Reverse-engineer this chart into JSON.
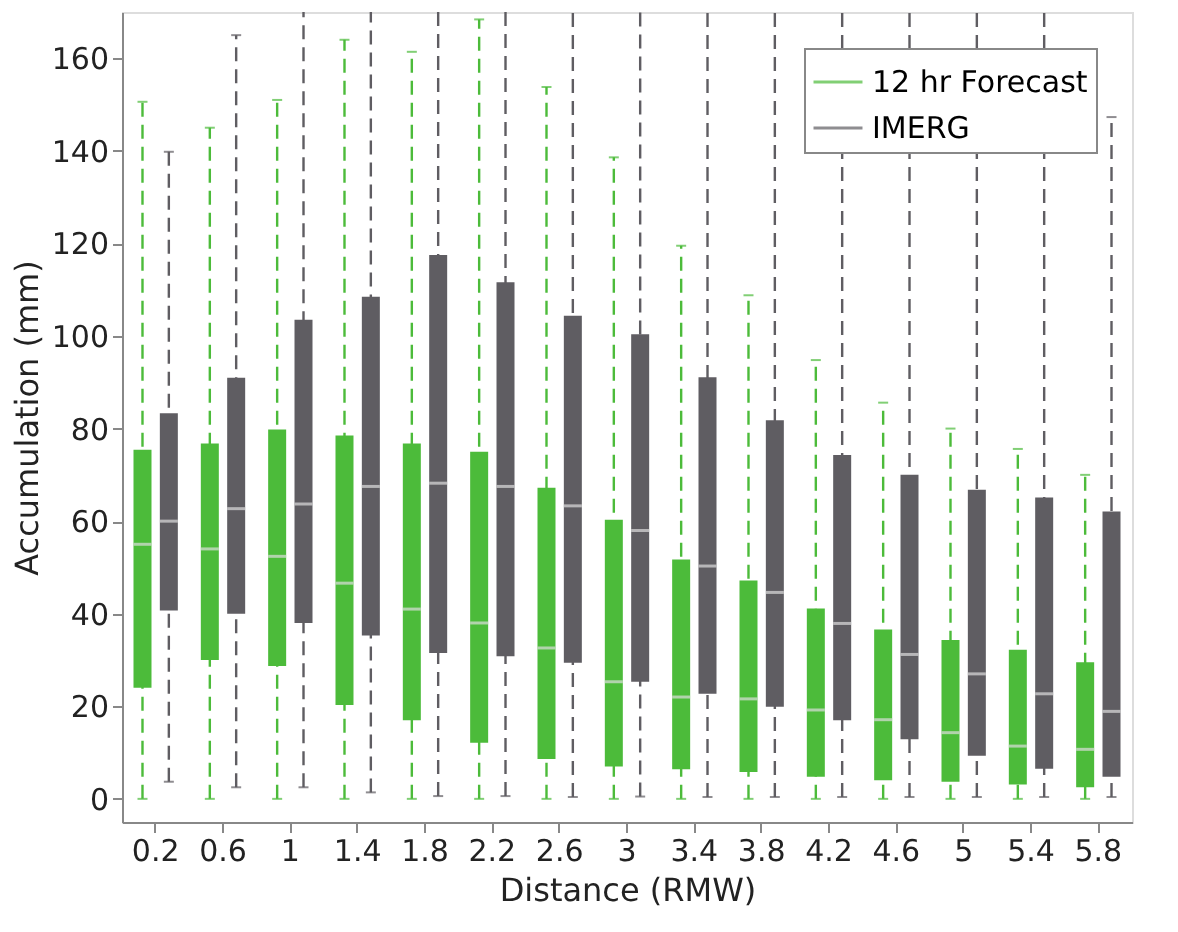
{
  "chart_data": {
    "type": "box",
    "xlabel": "Distance (RMW)",
    "ylabel": "Accumulation (mm)",
    "categories": [
      "0.2",
      "0.6",
      "1",
      "1.4",
      "1.8",
      "2.2",
      "2.6",
      "3",
      "3.4",
      "3.8",
      "4.2",
      "4.6",
      "5",
      "5.4",
      "5.8"
    ],
    "ylim": [
      -5,
      170
    ],
    "yticks": [
      0,
      20,
      40,
      60,
      80,
      100,
      120,
      140,
      160
    ],
    "grid": false,
    "legend": "top right",
    "line_style": "dashed",
    "series": [
      {
        "name": "12 hr Forecast",
        "color": "#4cbb3a",
        "boxes": [
          {
            "low": 0,
            "q1": 24,
            "median": 55,
            "q3": 75.4,
            "high": 150.6
          },
          {
            "low": 0,
            "q1": 30,
            "median": 54,
            "q3": 76.8,
            "high": 145
          },
          {
            "low": 0,
            "q1": 28.7,
            "median": 52.4,
            "q3": 79.8,
            "high": 151
          },
          {
            "low": 0,
            "q1": 20.3,
            "median": 46.6,
            "q3": 78.5,
            "high": 164
          },
          {
            "low": 0,
            "q1": 17,
            "median": 41,
            "q3": 76.8,
            "high": 161.4
          },
          {
            "low": 0,
            "q1": 12.1,
            "median": 38,
            "q3": 75,
            "high": 168.4
          },
          {
            "low": 0,
            "q1": 8.6,
            "median": 32.6,
            "q3": 67.2,
            "high": 153.8
          },
          {
            "low": 0,
            "q1": 7,
            "median": 25.3,
            "q3": 60.3,
            "high": 138.6
          },
          {
            "low": 0,
            "q1": 6.4,
            "median": 22,
            "q3": 51.7,
            "high": 119.5
          },
          {
            "low": 0,
            "q1": 5.8,
            "median": 21.6,
            "q3": 47.2,
            "high": 108.8
          },
          {
            "low": 0,
            "q1": 4.8,
            "median": 19.2,
            "q3": 41.1,
            "high": 94.8
          },
          {
            "low": 0,
            "q1": 4,
            "median": 17.1,
            "q3": 36.6,
            "high": 85.6
          },
          {
            "low": 0,
            "q1": 3.7,
            "median": 14.3,
            "q3": 34.3,
            "high": 80
          },
          {
            "low": 0,
            "q1": 3.1,
            "median": 11.4,
            "q3": 32.2,
            "high": 75.6
          },
          {
            "low": 0,
            "q1": 2.5,
            "median": 10.7,
            "q3": 29.5,
            "high": 70
          }
        ]
      },
      {
        "name": "IMERG",
        "color": "#5f5d62",
        "boxes": [
          {
            "low": 3.7,
            "q1": 40.7,
            "median": 60,
            "q3": 83.3,
            "high": 139.8
          },
          {
            "low": 2.5,
            "q1": 40,
            "median": 62.7,
            "q3": 91,
            "high": 165
          },
          {
            "low": 2.5,
            "q1": 38,
            "median": 63.7,
            "q3": 103.5,
            "high": null
          },
          {
            "low": 1.4,
            "q1": 35.3,
            "median": 67.5,
            "q3": 108.5,
            "high": null
          },
          {
            "low": 0.6,
            "q1": 31.5,
            "median": 68.2,
            "q3": 117.5,
            "high": null
          },
          {
            "low": 0.6,
            "q1": 30.8,
            "median": 67.5,
            "q3": 111.6,
            "high": null
          },
          {
            "low": 0.4,
            "q1": 29.4,
            "median": 63.3,
            "q3": 104.4,
            "high": null
          },
          {
            "low": 0.5,
            "q1": 25.3,
            "median": 58,
            "q3": 100.4,
            "high": null
          },
          {
            "low": 0.4,
            "q1": 22.7,
            "median": 50.3,
            "q3": 91.1,
            "high": null
          },
          {
            "low": 0.4,
            "q1": 19.9,
            "median": 44.6,
            "q3": 81.8,
            "high": null
          },
          {
            "low": 0.4,
            "q1": 17,
            "median": 37.9,
            "q3": 74.3,
            "high": null
          },
          {
            "low": 0.4,
            "q1": 12.9,
            "median": 31.2,
            "q3": 70,
            "high": null
          },
          {
            "low": 0.4,
            "q1": 9.3,
            "median": 27,
            "q3": 66.8,
            "high": null
          },
          {
            "low": 0.4,
            "q1": 6.5,
            "median": 22.7,
            "q3": 65.1,
            "high": null
          },
          {
            "low": 0.4,
            "q1": 4.8,
            "median": 18.9,
            "q3": 62.1,
            "high": 147.3
          }
        ]
      }
    ]
  }
}
